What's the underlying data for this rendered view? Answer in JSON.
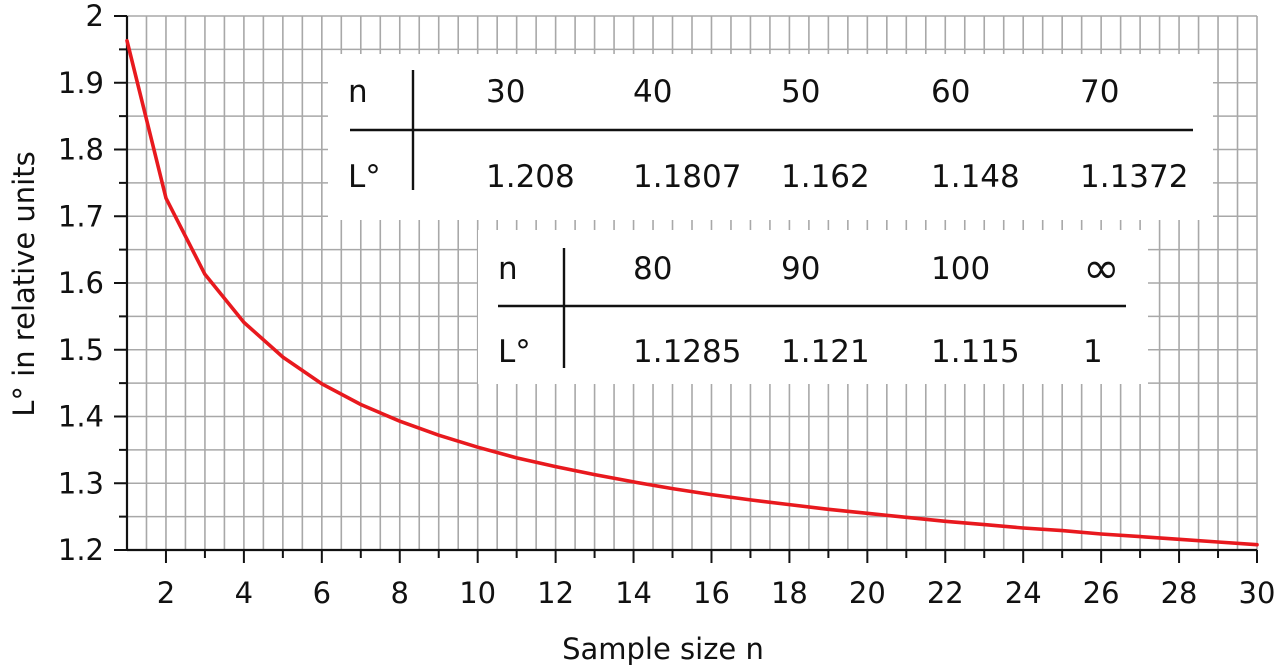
{
  "chart_data": {
    "type": "line",
    "xlabel": "Sample size n",
    "ylabel": "L° in relative units",
    "xlim": [
      1,
      30
    ],
    "ylim": [
      1.2,
      2
    ],
    "x_ticks": [
      "2",
      "4",
      "6",
      "8",
      "10",
      "12",
      "14",
      "16",
      "18",
      "20",
      "22",
      "24",
      "26",
      "28",
      "30"
    ],
    "y_ticks": [
      "1.2",
      "1.3",
      "1.4",
      "1.5",
      "1.6",
      "1.7",
      "1.8",
      "1.9",
      "2"
    ],
    "grid": true,
    "series": [
      {
        "color": "#e8191e",
        "x": [
          1,
          2,
          3,
          4,
          5,
          6,
          7,
          8,
          9,
          10,
          11,
          12,
          13,
          14,
          15,
          16,
          17,
          18,
          19,
          20,
          21,
          22,
          23,
          24,
          25,
          26,
          27,
          28,
          29,
          30
        ],
        "y": [
          1.963,
          1.727,
          1.613,
          1.541,
          1.489,
          1.449,
          1.418,
          1.393,
          1.372,
          1.354,
          1.338,
          1.325,
          1.313,
          1.302,
          1.292,
          1.283,
          1.275,
          1.268,
          1.261,
          1.255,
          1.249,
          1.243,
          1.238,
          1.233,
          1.229,
          1.224,
          1.22,
          1.216,
          1.212,
          1.208
        ]
      }
    ],
    "tables": [
      {
        "row_header_n": "n",
        "row_header_l": "L°",
        "n_values": [
          "30",
          "40",
          "50",
          "60",
          "70"
        ],
        "l_values": [
          "1.208",
          "1.1807",
          "1.162",
          "1.148",
          "1.1372"
        ]
      },
      {
        "row_header_n": "n",
        "row_header_l": "L°",
        "n_values": [
          "80",
          "90",
          "100",
          "∞"
        ],
        "l_values": [
          "1.1285",
          "1.121",
          "1.115",
          "1"
        ]
      }
    ]
  }
}
